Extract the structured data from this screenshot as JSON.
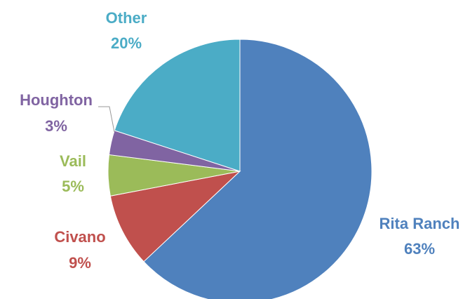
{
  "chart_data": {
    "type": "pie",
    "categories": [
      "Rita Ranch",
      "Civano",
      "Vail",
      "Houghton",
      "Other"
    ],
    "values": [
      63,
      9,
      5,
      3,
      20
    ],
    "value_labels": [
      "63%",
      "9%",
      "5%",
      "3%",
      "20%"
    ],
    "colors": [
      "#4f81bd",
      "#c0504d",
      "#9bbb59",
      "#8064a2",
      "#4bacc6"
    ]
  }
}
